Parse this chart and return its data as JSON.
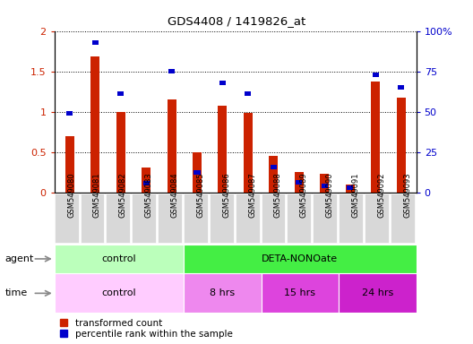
{
  "title": "GDS4408 / 1419826_at",
  "samples": [
    "GSM549080",
    "GSM549081",
    "GSM549082",
    "GSM549083",
    "GSM549084",
    "GSM549085",
    "GSM549086",
    "GSM549087",
    "GSM549088",
    "GSM549089",
    "GSM549090",
    "GSM549091",
    "GSM549092",
    "GSM549093"
  ],
  "transformed_count": [
    0.7,
    1.68,
    1.0,
    0.31,
    1.15,
    0.5,
    1.08,
    0.99,
    0.46,
    0.26,
    0.23,
    0.1,
    1.38,
    1.18
  ],
  "percentile_rank_scaled": [
    0.98,
    1.86,
    1.22,
    0.12,
    1.5,
    0.25,
    1.36,
    1.22,
    0.32,
    0.13,
    0.08,
    0.06,
    1.46,
    1.3
  ],
  "red_color": "#cc2200",
  "blue_color": "#0000cc",
  "ylim_left": [
    0,
    2
  ],
  "ylim_right": [
    0,
    100
  ],
  "yticks_left": [
    0,
    0.5,
    1.0,
    1.5,
    2.0
  ],
  "yticks_right": [
    0,
    25,
    50,
    75,
    100
  ],
  "ytick_labels_left": [
    "0",
    "0.5",
    "1",
    "1.5",
    "2"
  ],
  "ytick_labels_right": [
    "0",
    "25",
    "50",
    "75",
    "100%"
  ],
  "agent_groups": [
    {
      "label": "control",
      "start": 0,
      "end": 5,
      "color": "#bbffbb"
    },
    {
      "label": "DETA-NONOate",
      "start": 5,
      "end": 14,
      "color": "#44ee44"
    }
  ],
  "time_groups": [
    {
      "label": "control",
      "start": 0,
      "end": 5,
      "color": "#ffccff"
    },
    {
      "label": "8 hrs",
      "start": 5,
      "end": 8,
      "color": "#ee88ee"
    },
    {
      "label": "15 hrs",
      "start": 8,
      "end": 11,
      "color": "#dd44dd"
    },
    {
      "label": "24 hrs",
      "start": 11,
      "end": 14,
      "color": "#cc22cc"
    }
  ],
  "legend_red_label": "transformed count",
  "legend_blue_label": "percentile rank within the sample",
  "bar_width": 0.35,
  "tick_bg_color": "#d8d8d8",
  "plot_bg": "#ffffff"
}
